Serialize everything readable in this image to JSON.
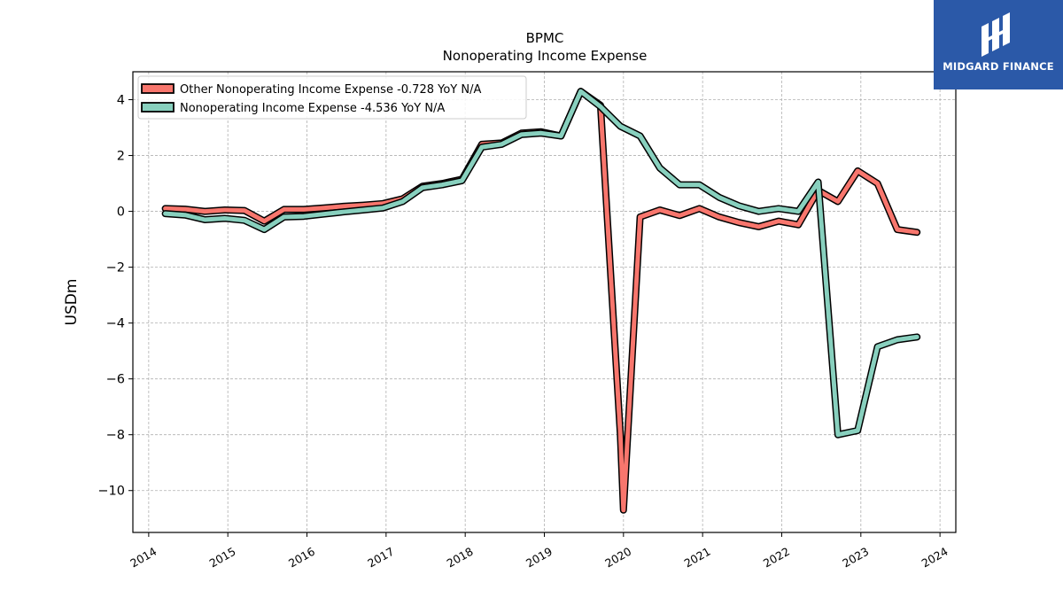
{
  "chart_data": {
    "type": "line",
    "title": "BPMC",
    "subtitle": "Nonoperating Income Expense",
    "xlabel": "",
    "ylabel": "USDm",
    "ylim": [
      -11.5,
      5.0
    ],
    "xlim": [
      2013.8,
      2024.2
    ],
    "yticks": [
      4,
      2,
      0,
      -2,
      -4,
      -6,
      -8,
      -10
    ],
    "ytick_labels": [
      "4",
      "2",
      "0",
      "−2",
      "−4",
      "−6",
      "−8",
      "−10"
    ],
    "xticks": [
      2014,
      2015,
      2016,
      2017,
      2018,
      2019,
      2020,
      2021,
      2022,
      2023,
      2024
    ],
    "xtick_labels": [
      "2014",
      "2015",
      "2016",
      "2017",
      "2018",
      "2019",
      "2020",
      "2021",
      "2022",
      "2023",
      "2024"
    ],
    "grid": true,
    "legend_position": "top-left",
    "series": [
      {
        "name": "Other Nonoperating Income Expense  -0.728 YoY N/A",
        "color": "#f8766d",
        "x": [
          2014.21,
          2014.46,
          2014.71,
          2014.96,
          2015.21,
          2015.46,
          2015.71,
          2015.96,
          2016.21,
          2016.46,
          2016.71,
          2016.96,
          2017.21,
          2017.46,
          2017.71,
          2017.96,
          2018.21,
          2018.46,
          2018.71,
          2018.96,
          2019.21,
          2019.46,
          2019.71,
          2019.96,
          2020.0,
          2020.21,
          2020.46,
          2020.71,
          2020.96,
          2021.21,
          2021.46,
          2021.71,
          2021.96,
          2022.21,
          2022.46,
          2022.71,
          2022.96,
          2023.21,
          2023.46,
          2023.71
        ],
        "y": [
          0.1,
          0.08,
          0.0,
          0.05,
          0.03,
          -0.35,
          0.07,
          0.07,
          0.12,
          0.18,
          0.22,
          0.28,
          0.45,
          0.9,
          1.0,
          1.15,
          2.4,
          2.45,
          2.8,
          2.85,
          2.7,
          4.3,
          3.8,
          -8.0,
          -10.7,
          -0.2,
          0.05,
          -0.15,
          0.1,
          -0.2,
          -0.4,
          -0.55,
          -0.35,
          -0.48,
          0.75,
          0.35,
          1.45,
          1.0,
          -0.65,
          -0.75
        ]
      },
      {
        "name": "Nonoperating Income Expense  -4.536 YoY N/A",
        "color": "#88d0be",
        "x": [
          2014.21,
          2014.46,
          2014.71,
          2014.96,
          2015.21,
          2015.46,
          2015.71,
          2015.96,
          2016.21,
          2016.46,
          2016.71,
          2016.96,
          2017.21,
          2017.46,
          2017.71,
          2017.96,
          2018.21,
          2018.46,
          2018.71,
          2018.96,
          2019.21,
          2019.46,
          2019.71,
          2019.96,
          2020.21,
          2020.46,
          2020.71,
          2020.96,
          2021.21,
          2021.46,
          2021.71,
          2021.96,
          2022.21,
          2022.46,
          2022.71,
          2022.96,
          2023.21,
          2023.46,
          2023.71
        ],
        "y": [
          -0.08,
          -0.13,
          -0.3,
          -0.25,
          -0.32,
          -0.65,
          -0.2,
          -0.18,
          -0.1,
          -0.02,
          0.05,
          0.12,
          0.35,
          0.85,
          0.95,
          1.1,
          2.3,
          2.4,
          2.75,
          2.8,
          2.7,
          4.3,
          3.75,
          3.05,
          2.7,
          1.55,
          0.95,
          0.95,
          0.5,
          0.2,
          0.0,
          0.1,
          0.0,
          1.05,
          -8.0,
          -7.85,
          -4.85,
          -4.6,
          -4.5
        ]
      }
    ]
  },
  "logo": {
    "text": "MIDGARD FINANCE"
  }
}
